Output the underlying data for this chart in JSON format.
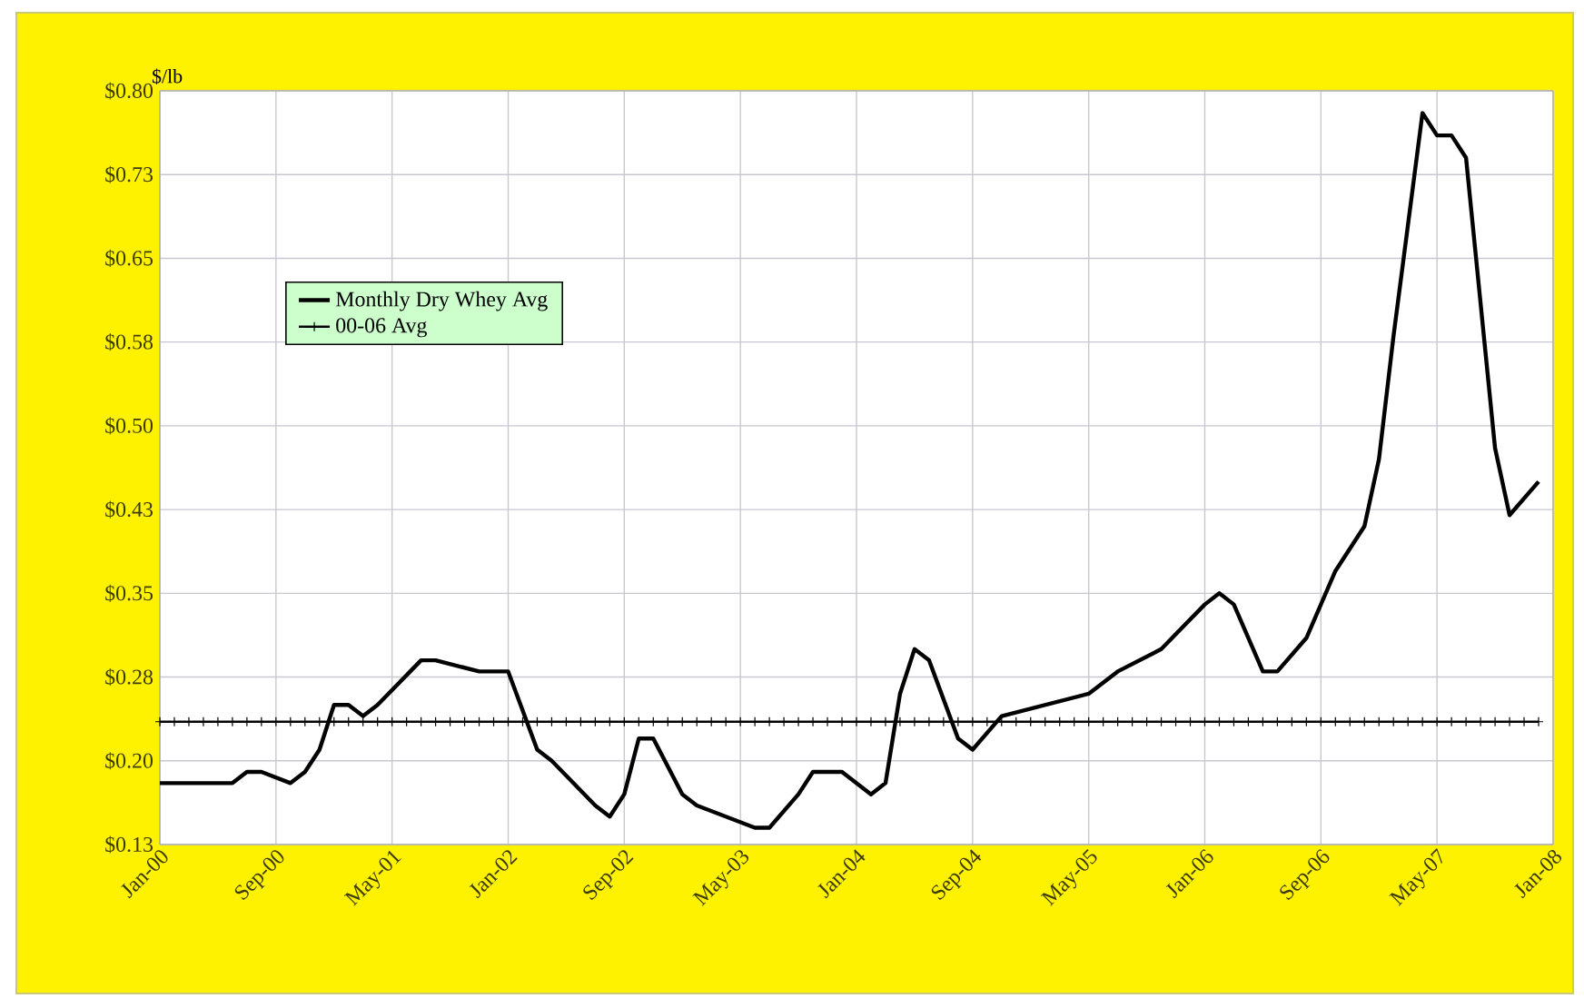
{
  "chart_data": {
    "type": "line",
    "ylabel": "$/lb",
    "ylim": [
      0.125,
      0.8
    ],
    "yticks": [
      {
        "value": 0.125,
        "label": "$0.13"
      },
      {
        "value": 0.2,
        "label": "$0.20"
      },
      {
        "value": 0.275,
        "label": "$0.28"
      },
      {
        "value": 0.35,
        "label": "$0.35"
      },
      {
        "value": 0.425,
        "label": "$0.43"
      },
      {
        "value": 0.5,
        "label": "$0.50"
      },
      {
        "value": 0.575,
        "label": "$0.58"
      },
      {
        "value": 0.65,
        "label": "$0.65"
      },
      {
        "value": 0.725,
        "label": "$0.73"
      },
      {
        "value": 0.8,
        "label": "$0.80"
      }
    ],
    "xlim": [
      "2000-01",
      "2008-01"
    ],
    "xticks": [
      {
        "value": "2000-01",
        "label": "Jan-00"
      },
      {
        "value": "2000-09",
        "label": "Sep-00"
      },
      {
        "value": "2001-05",
        "label": "May-01"
      },
      {
        "value": "2002-01",
        "label": "Jan-02"
      },
      {
        "value": "2002-09",
        "label": "Sep-02"
      },
      {
        "value": "2003-05",
        "label": "May-03"
      },
      {
        "value": "2004-01",
        "label": "Jan-04"
      },
      {
        "value": "2004-09",
        "label": "Sep-04"
      },
      {
        "value": "2005-05",
        "label": "May-05"
      },
      {
        "value": "2006-01",
        "label": "Jan-06"
      },
      {
        "value": "2006-09",
        "label": "Sep-06"
      },
      {
        "value": "2007-05",
        "label": "May-07"
      },
      {
        "value": "2008-01",
        "label": "Jan-08"
      }
    ],
    "grid": true,
    "legend": "top left",
    "series": [
      {
        "name": "Monthly Dry Whey Avg",
        "color": "#000000",
        "marker": "none",
        "line_style": "solid",
        "x": [
          "2000-01",
          "2000-03",
          "2000-06",
          "2000-07",
          "2000-08",
          "2000-10",
          "2000-11",
          "2000-12",
          "2001-01",
          "2001-02",
          "2001-03",
          "2001-04",
          "2001-07",
          "2001-08",
          "2001-11",
          "2001-12",
          "2002-01",
          "2002-03",
          "2002-04",
          "2002-07",
          "2002-08",
          "2002-09",
          "2002-10",
          "2002-11",
          "2003-01",
          "2003-02",
          "2003-04",
          "2003-06",
          "2003-07",
          "2003-09",
          "2003-10",
          "2003-12",
          "2004-02",
          "2004-03",
          "2004-04",
          "2004-05",
          "2004-06",
          "2004-08",
          "2004-09",
          "2004-11",
          "2005-02",
          "2005-05",
          "2005-07",
          "2005-10",
          "2006-01",
          "2006-02",
          "2006-03",
          "2006-05",
          "2006-06",
          "2006-08",
          "2006-10",
          "2006-12",
          "2007-01",
          "2007-02",
          "2007-03",
          "2007-04",
          "2007-05",
          "2007-06",
          "2007-07",
          "2007-09",
          "2007-10",
          "2007-12"
        ],
        "values": [
          0.18,
          0.18,
          0.18,
          0.19,
          0.19,
          0.18,
          0.19,
          0.21,
          0.25,
          0.25,
          0.24,
          0.25,
          0.29,
          0.29,
          0.28,
          0.28,
          0.28,
          0.21,
          0.2,
          0.16,
          0.15,
          0.17,
          0.22,
          0.22,
          0.17,
          0.16,
          0.15,
          0.14,
          0.14,
          0.17,
          0.19,
          0.19,
          0.17,
          0.18,
          0.26,
          0.3,
          0.29,
          0.22,
          0.21,
          0.24,
          0.25,
          0.26,
          0.28,
          0.3,
          0.34,
          0.35,
          0.34,
          0.28,
          0.28,
          0.31,
          0.37,
          0.41,
          0.47,
          0.58,
          0.68,
          0.78,
          0.76,
          0.76,
          0.74,
          0.48,
          0.42,
          0.45
        ]
      },
      {
        "name": "00-06 Avg",
        "color": "#000000",
        "marker": "cross",
        "line_style": "solid",
        "x": [
          "2000-01",
          "2000-02",
          "2000-03",
          "2000-04",
          "2000-05",
          "2000-06",
          "2000-07",
          "2000-08",
          "2000-09",
          "2000-10",
          "2000-11",
          "2000-12",
          "2001-01",
          "2001-02",
          "2001-03",
          "2001-04",
          "2001-05",
          "2001-06",
          "2001-07",
          "2001-08",
          "2001-09",
          "2001-10",
          "2001-11",
          "2001-12",
          "2002-01",
          "2002-02",
          "2002-03",
          "2002-04",
          "2002-05",
          "2002-06",
          "2002-07",
          "2002-08",
          "2002-09",
          "2002-10",
          "2002-11",
          "2002-12",
          "2003-01",
          "2003-02",
          "2003-03",
          "2003-04",
          "2003-05",
          "2003-06",
          "2003-07",
          "2003-08",
          "2003-09",
          "2003-10",
          "2003-11",
          "2003-12",
          "2004-01",
          "2004-02",
          "2004-03",
          "2004-04",
          "2004-05",
          "2004-06",
          "2004-07",
          "2004-08",
          "2004-09",
          "2004-10",
          "2004-11",
          "2004-12",
          "2005-01",
          "2005-02",
          "2005-03",
          "2005-04",
          "2005-05",
          "2005-06",
          "2005-07",
          "2005-08",
          "2005-09",
          "2005-10",
          "2005-11",
          "2005-12",
          "2006-01",
          "2006-02",
          "2006-03",
          "2006-04",
          "2006-05",
          "2006-06",
          "2006-07",
          "2006-08",
          "2006-09",
          "2006-10",
          "2006-11",
          "2006-12",
          "2007-01",
          "2007-02",
          "2007-03",
          "2007-04",
          "2007-05",
          "2007-06",
          "2007-07",
          "2007-08",
          "2007-09",
          "2007-10",
          "2007-11",
          "2007-12"
        ],
        "values": [
          0.235,
          0.235,
          0.235,
          0.235,
          0.235,
          0.235,
          0.235,
          0.235,
          0.235,
          0.235,
          0.235,
          0.235,
          0.235,
          0.235,
          0.235,
          0.235,
          0.235,
          0.235,
          0.235,
          0.235,
          0.235,
          0.235,
          0.235,
          0.235,
          0.235,
          0.235,
          0.235,
          0.235,
          0.235,
          0.235,
          0.235,
          0.235,
          0.235,
          0.235,
          0.235,
          0.235,
          0.235,
          0.235,
          0.235,
          0.235,
          0.235,
          0.235,
          0.235,
          0.235,
          0.235,
          0.235,
          0.235,
          0.235,
          0.235,
          0.235,
          0.235,
          0.235,
          0.235,
          0.235,
          0.235,
          0.235,
          0.235,
          0.235,
          0.235,
          0.235,
          0.235,
          0.235,
          0.235,
          0.235,
          0.235,
          0.235,
          0.235,
          0.235,
          0.235,
          0.235,
          0.235,
          0.235,
          0.235,
          0.235,
          0.235,
          0.235,
          0.235,
          0.235,
          0.235,
          0.235,
          0.235,
          0.235,
          0.235,
          0.235,
          0.235,
          0.235,
          0.235,
          0.235,
          0.235,
          0.235,
          0.235,
          0.235,
          0.235,
          0.235,
          0.235,
          0.235
        ]
      }
    ]
  }
}
